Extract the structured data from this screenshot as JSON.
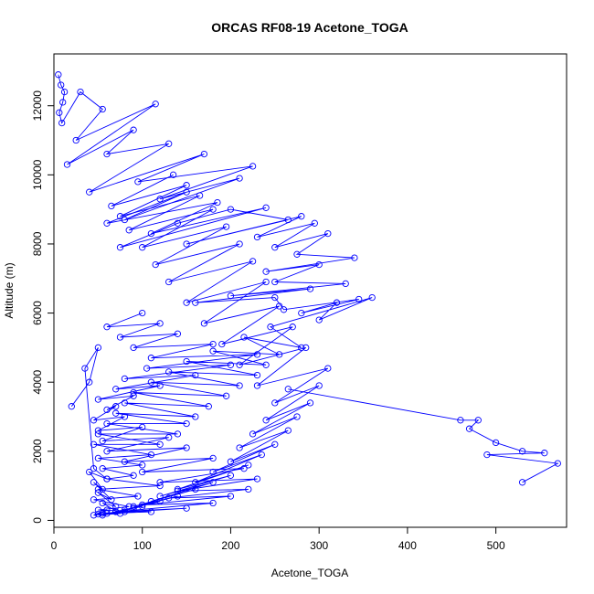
{
  "chart_data": {
    "type": "scatter",
    "title": "ORCAS RF08-19 Acetone_TOGA",
    "xlabel": "Acetone_TOGA",
    "ylabel": "Altitude (m)",
    "xlim": [
      0,
      580
    ],
    "ylim": [
      -200,
      13500
    ],
    "xticks": [
      0,
      100,
      200,
      300,
      400,
      500
    ],
    "yticks": [
      0,
      2000,
      4000,
      6000,
      8000,
      10000,
      12000
    ],
    "grid": false,
    "legend": "none",
    "color": "#0000ff",
    "series": [
      {
        "x": [
          5,
          8,
          12,
          10,
          6,
          9,
          30,
          55,
          25,
          115,
          15,
          90,
          60,
          130,
          40,
          170,
          95,
          225,
          120,
          210,
          80,
          150,
          60,
          185,
          110,
          240,
          75,
          140,
          200,
          265,
          150,
          280,
          230,
          295,
          250,
          310,
          275,
          340,
          240,
          300,
          250,
          330,
          200,
          290,
          160,
          250,
          260,
          345,
          280,
          320,
          300,
          360,
          245,
          280,
          215,
          255,
          180,
          240,
          150,
          230,
          130,
          210,
          110,
          195,
          90,
          175,
          80,
          160,
          70,
          150,
          60,
          140,
          50,
          120,
          45,
          110,
          50,
          100,
          55,
          90,
          60,
          120,
          50,
          95,
          45,
          85,
          50,
          110,
          55,
          150,
          70,
          180,
          100,
          200,
          130,
          220,
          140,
          230,
          120,
          215,
          100,
          180,
          80,
          150,
          60,
          130,
          55,
          100,
          50,
          80,
          45,
          70,
          60,
          90,
          50,
          120,
          70,
          160,
          80,
          200,
          105,
          230,
          110,
          180,
          90,
          140,
          75,
          120,
          60,
          100
        ],
        "y": [
          12900,
          12600,
          12400,
          12100,
          11800,
          11500,
          12400,
          11900,
          11000,
          12050,
          10300,
          11300,
          10600,
          10900,
          9500,
          10600,
          9800,
          10250,
          9300,
          9900,
          8700,
          9500,
          8600,
          9200,
          8300,
          9050,
          7900,
          8600,
          9000,
          8700,
          8000,
          8800,
          8200,
          8600,
          7900,
          8300,
          7700,
          7600,
          7200,
          7400,
          6900,
          6850,
          6500,
          6700,
          6300,
          6450,
          6100,
          6400,
          6000,
          6300,
          5800,
          6450,
          5600,
          5000,
          5300,
          4800,
          4900,
          4500,
          4600,
          4200,
          4300,
          3900,
          4000,
          3600,
          3700,
          3300,
          3400,
          3000,
          3100,
          2800,
          2800,
          2500,
          2500,
          2200,
          2200,
          1900,
          1800,
          1600,
          1500,
          1300,
          1200,
          1000,
          900,
          700,
          600,
          400,
          300,
          250,
          200,
          350,
          250,
          500,
          450,
          700,
          650,
          900,
          850,
          1200,
          1100,
          1500,
          1400,
          1800,
          1700,
          2100,
          2000,
          2400,
          2300,
          2700,
          2600,
          3000,
          2900,
          3300,
          3200,
          3600,
          3500,
          3900,
          3800,
          4200,
          4100,
          4500,
          4400,
          4800,
          4700,
          5100,
          5000,
          5400,
          5300,
          5700,
          5600,
          6000
        ]
      },
      {
        "x": [
          265,
          460,
          480,
          470,
          500,
          530,
          555,
          490,
          570,
          530
        ],
        "y": [
          3800,
          2900,
          2900,
          2650,
          2250,
          2000,
          1950,
          1900,
          1650,
          1100
        ]
      },
      {
        "x": [
          20,
          40,
          50,
          35,
          45,
          60,
          40,
          55,
          45,
          65,
          50,
          70,
          55,
          75,
          45,
          60,
          50,
          80,
          55,
          90,
          60,
          100,
          70,
          120,
          80,
          140,
          90,
          160,
          110,
          180,
          120,
          200,
          140,
          220,
          160,
          235,
          180,
          250,
          200,
          265,
          210,
          275,
          225,
          290,
          240,
          300,
          250,
          310,
          230,
          285,
          210,
          270,
          190,
          255,
          170,
          240,
          150,
          225,
          130,
          210,
          115,
          195,
          100,
          180,
          85,
          165,
          75,
          150,
          65,
          135
        ],
        "y": [
          3300,
          4000,
          5000,
          4400,
          1500,
          1200,
          1400,
          900,
          1100,
          600,
          800,
          400,
          500,
          200,
          150,
          300,
          180,
          250,
          150,
          350,
          200,
          400,
          250,
          550,
          300,
          700,
          400,
          900,
          550,
          1100,
          700,
          1300,
          900,
          1600,
          1100,
          1900,
          1400,
          2200,
          1700,
          2600,
          2100,
          3000,
          2500,
          3400,
          2900,
          3900,
          3400,
          4400,
          3900,
          5000,
          4500,
          5600,
          5100,
          6200,
          5700,
          6900,
          6300,
          7500,
          6900,
          8000,
          7400,
          8500,
          7900,
          9000,
          8400,
          9400,
          8800,
          9700,
          9100,
          10000
        ]
      }
    ]
  }
}
